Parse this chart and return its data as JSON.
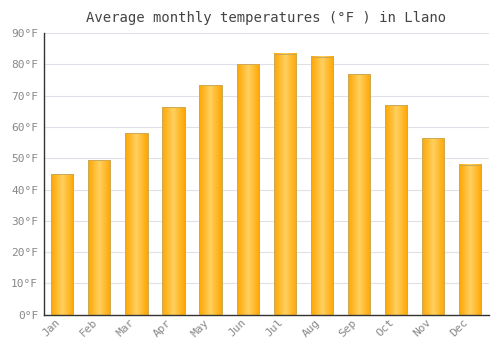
{
  "title": "Average monthly temperatures (°F ) in Llano",
  "months": [
    "Jan",
    "Feb",
    "Mar",
    "Apr",
    "May",
    "Jun",
    "Jul",
    "Aug",
    "Sep",
    "Oct",
    "Nov",
    "Dec"
  ],
  "values": [
    45,
    49.5,
    58,
    66.5,
    73.5,
    80,
    83.5,
    82.5,
    77,
    67,
    56.5,
    48
  ],
  "ylim": [
    0,
    90
  ],
  "yticks": [
    0,
    10,
    20,
    30,
    40,
    50,
    60,
    70,
    80,
    90
  ],
  "ytick_labels": [
    "0°F",
    "10°F",
    "20°F",
    "30°F",
    "40°F",
    "50°F",
    "60°F",
    "70°F",
    "80°F",
    "90°F"
  ],
  "background_color": "#ffffff",
  "plot_bg_color": "#ffffff",
  "grid_color": "#e0e0e8",
  "font_color": "#888888",
  "title_font_color": "#444444",
  "bar_color_main": "#FFA500",
  "bar_color_light": "#FFD070",
  "bar_edge_color": "#ccaa44",
  "figsize": [
    5.0,
    3.5
  ],
  "dpi": 100
}
